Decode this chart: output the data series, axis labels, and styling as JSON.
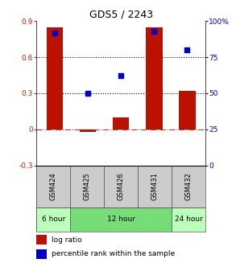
{
  "title": "GDS5 / 2243",
  "samples": [
    "GSM424",
    "GSM425",
    "GSM426",
    "GSM431",
    "GSM432"
  ],
  "log_ratio": [
    0.85,
    -0.02,
    0.1,
    0.85,
    0.32
  ],
  "percentile_rank": [
    92,
    50,
    62,
    93,
    80
  ],
  "ylim_left": [
    -0.3,
    0.9
  ],
  "ylim_right": [
    0,
    100
  ],
  "yticks_left": [
    -0.3,
    0.0,
    0.3,
    0.6,
    0.9
  ],
  "yticks_right": [
    0,
    25,
    50,
    75,
    100
  ],
  "ytick_labels_left": [
    "-0.3",
    "0",
    "0.3",
    "0.6",
    "0.9"
  ],
  "ytick_labels_right": [
    "0",
    "25",
    "50",
    "75",
    "100%"
  ],
  "hlines": [
    0.3,
    0.6
  ],
  "time_groups": [
    {
      "label": "6 hour",
      "n": 1,
      "color": "#bbffbb"
    },
    {
      "label": "12 hour",
      "n": 3,
      "color": "#77dd77"
    },
    {
      "label": "24 hour",
      "n": 1,
      "color": "#bbffbb"
    }
  ],
  "bar_color": "#bb1100",
  "scatter_color": "#0000cc",
  "zero_line_color": "#cc3333",
  "dotted_line_color": "#000000",
  "bar_width": 0.5,
  "scatter_size": 22,
  "left_tick_color": "#cc2200",
  "right_tick_color": "#0000bb",
  "background_color": "#ffffff",
  "legend_bar_label": "log ratio",
  "legend_scatter_label": "percentile rank within the sample",
  "cell_color": "#cccccc",
  "cell_edge_color": "#555555"
}
